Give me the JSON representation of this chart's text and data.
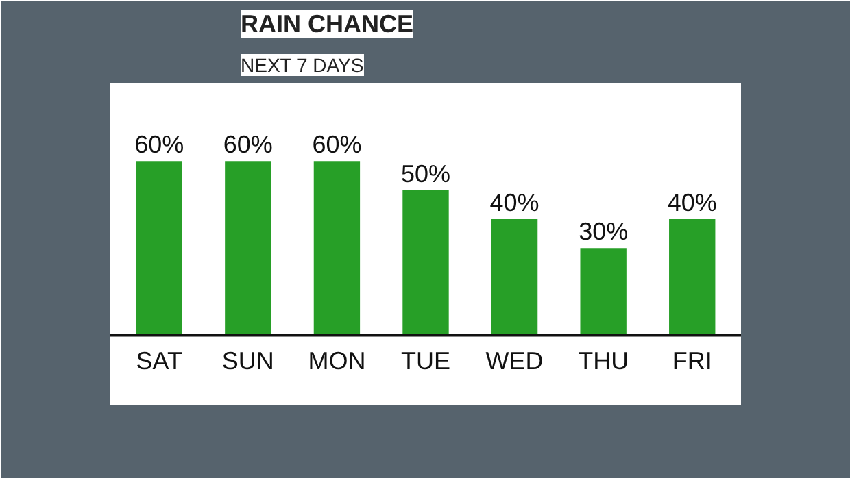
{
  "chart_data": {
    "type": "bar",
    "title": "RAIN CHANCE",
    "subtitle": "NEXT 7 DAYS",
    "categories": [
      "SAT",
      "SUN",
      "MON",
      "TUE",
      "WED",
      "THU",
      "FRI"
    ],
    "values": [
      60,
      60,
      60,
      50,
      40,
      30,
      40
    ],
    "value_labels": [
      "60%",
      "60%",
      "60%",
      "50%",
      "40%",
      "30%",
      "40%"
    ],
    "color": "#279f27",
    "grid": false
  }
}
